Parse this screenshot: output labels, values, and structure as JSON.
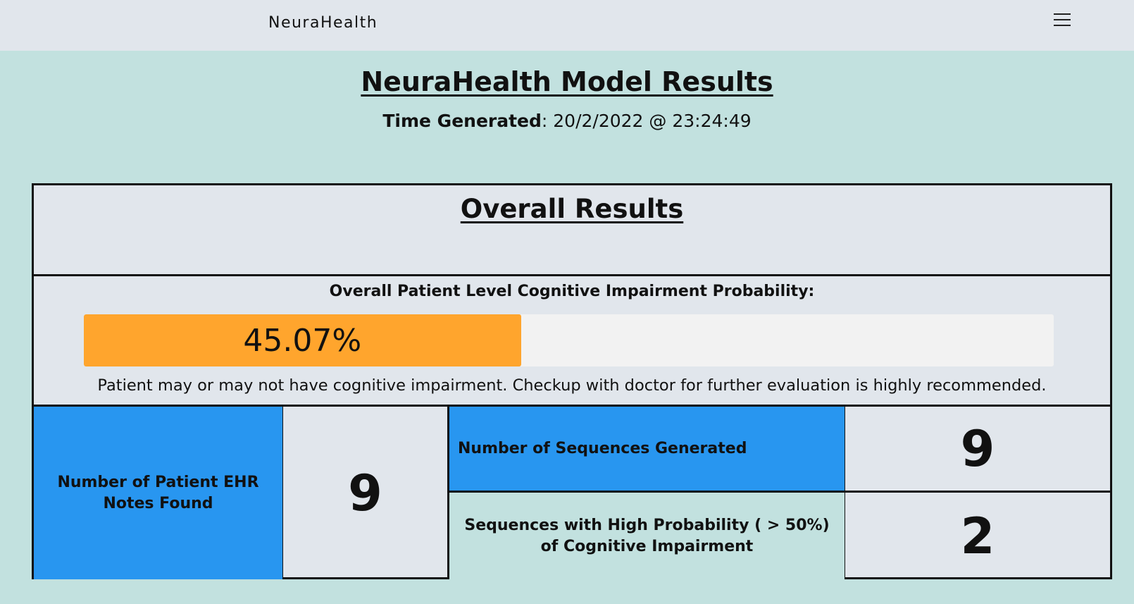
{
  "navbar": {
    "brand": "NeuraHealth",
    "menu_icon": "hamburger-menu-icon"
  },
  "header": {
    "title": "NeuraHealth Model Results",
    "time_label": "Time Generated",
    "time_value": ": 20/2/2022 @ 23:24:49"
  },
  "overall": {
    "title": "Overall Results",
    "probability_label": "Overall Patient Level Cognitive Impairment Probability:",
    "probability_text": "45.07%",
    "probability_fraction": 0.4507,
    "probability_bar_color": "#ffa52d",
    "note": "Patient may or may not have cognitive impairment. Checkup with doctor for further evaluation is highly recommended."
  },
  "stats": {
    "ehr_notes_label": "Number of Patient EHR Notes Found",
    "ehr_notes_value": "9",
    "sequences_label": "Number of Sequences Generated",
    "sequences_value": "9",
    "high_prob_label": "Sequences with High Probability ( > 50%) of Cognitive Impairment",
    "high_prob_value": "2",
    "accent_color": "#2896f0"
  }
}
